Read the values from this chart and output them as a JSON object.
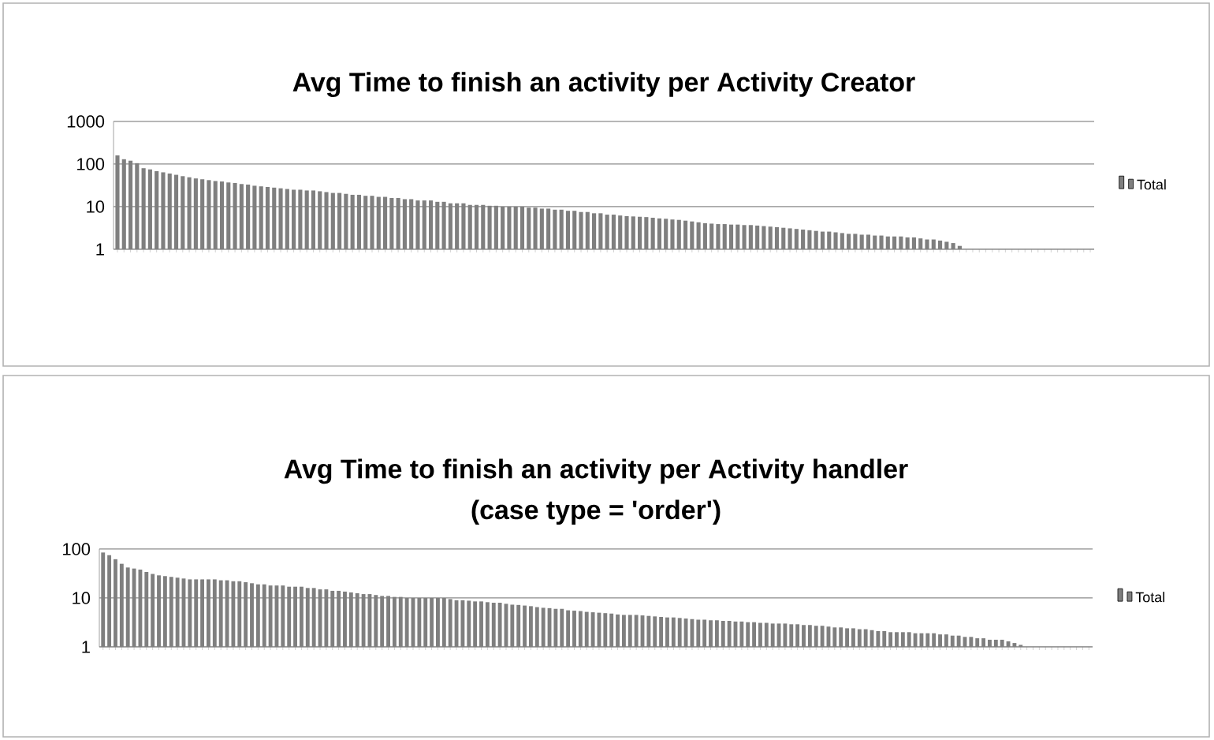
{
  "chart_data": [
    {
      "type": "bar",
      "title": "Avg Time to finish an activity per Activity Creator",
      "log": true,
      "grid": "y",
      "legend": "right",
      "ylim": [
        1,
        1000
      ],
      "yticks": [
        1,
        10,
        100,
        1000
      ],
      "categories": [
        null,
        null,
        null,
        null,
        null,
        null,
        null,
        null,
        null,
        null,
        null,
        null,
        null,
        null,
        null,
        null,
        null,
        null,
        null,
        null,
        null,
        null,
        null,
        null,
        null,
        null,
        null,
        null,
        null,
        null,
        null,
        null,
        null,
        null,
        null,
        null,
        null,
        null,
        null,
        null,
        null,
        null,
        null,
        null,
        null,
        null,
        null,
        null,
        null,
        null,
        null,
        null,
        null,
        null,
        null,
        null,
        null,
        null,
        null,
        null,
        null,
        null,
        null,
        null,
        null,
        null,
        null,
        null,
        null,
        null,
        null,
        null,
        null,
        null,
        null,
        null,
        null,
        null,
        null,
        null,
        null,
        null,
        null,
        null,
        null,
        null,
        null,
        null,
        null,
        null,
        null,
        null,
        null,
        null,
        null,
        null,
        null,
        null,
        null,
        null,
        null,
        null,
        null,
        null,
        null,
        null,
        null,
        null,
        null,
        null,
        null,
        null,
        null,
        null,
        null,
        null,
        null,
        null,
        null,
        null,
        null,
        null,
        null,
        null,
        null,
        null,
        null,
        null,
        null,
        null,
        null,
        null,
        null,
        null,
        null,
        null,
        null,
        null,
        null,
        null,
        null,
        null,
        null,
        null,
        null,
        null,
        null,
        null,
        null,
        null
      ],
      "series": [
        {
          "name": "Total",
          "color": "#7f7f7f",
          "values": [
            160,
            130,
            120,
            105,
            80,
            75,
            68,
            64,
            60,
            56,
            52,
            49,
            46,
            44,
            42,
            40,
            39,
            37,
            36,
            34,
            33,
            31,
            30,
            29,
            28,
            27,
            26,
            25,
            25,
            24,
            24,
            23,
            22,
            21,
            21,
            20,
            19,
            19,
            18,
            18,
            17,
            17,
            16,
            16,
            15,
            15,
            14,
            14,
            14,
            13,
            13,
            12,
            12,
            12,
            11,
            11,
            11,
            10.5,
            10.5,
            10,
            10,
            10,
            10,
            9.5,
            9.5,
            9,
            9,
            8.5,
            8.5,
            8,
            8,
            7.5,
            7.5,
            7,
            7,
            6.5,
            6.5,
            6.2,
            6,
            5.9,
            5.8,
            5.7,
            5.5,
            5.3,
            5.2,
            5,
            4.9,
            4.7,
            4.5,
            4.3,
            4.1,
            4,
            3.9,
            3.9,
            3.8,
            3.8,
            3.7,
            3.7,
            3.6,
            3.5,
            3.4,
            3.3,
            3.2,
            3.1,
            3,
            2.9,
            2.8,
            2.7,
            2.6,
            2.6,
            2.5,
            2.4,
            2.3,
            2.3,
            2.2,
            2.2,
            2.1,
            2.1,
            2,
            2,
            2,
            1.9,
            1.9,
            1.8,
            1.7,
            1.7,
            1.6,
            1.5,
            1.4,
            1.2,
            1,
            1,
            1,
            1,
            1,
            1,
            1,
            1,
            1,
            1,
            1,
            1,
            1,
            1,
            1,
            1,
            1,
            1,
            1,
            1
          ]
        }
      ]
    },
    {
      "type": "bar",
      "title": "Avg Time to finish an activity per Activity handler",
      "subtitle": "(case type = 'order')",
      "log": true,
      "grid": "y",
      "legend": "right",
      "ylim": [
        1,
        100
      ],
      "yticks": [
        1,
        10,
        100
      ],
      "categories": [
        null,
        null,
        null,
        null,
        null,
        null,
        null,
        null,
        null,
        null,
        null,
        null,
        null,
        null,
        null,
        null,
        null,
        null,
        null,
        null,
        null,
        null,
        null,
        null,
        null,
        null,
        null,
        null,
        null,
        null,
        null,
        null,
        null,
        null,
        null,
        null,
        null,
        null,
        null,
        null,
        null,
        null,
        null,
        null,
        null,
        null,
        null,
        null,
        null,
        null,
        null,
        null,
        null,
        null,
        null,
        null,
        null,
        null,
        null,
        null,
        null,
        null,
        null,
        null,
        null,
        null,
        null,
        null,
        null,
        null,
        null,
        null,
        null,
        null,
        null,
        null,
        null,
        null,
        null,
        null,
        null,
        null,
        null,
        null,
        null,
        null,
        null,
        null,
        null,
        null,
        null,
        null,
        null,
        null,
        null,
        null,
        null,
        null,
        null,
        null,
        null,
        null,
        null,
        null,
        null,
        null,
        null,
        null,
        null,
        null,
        null,
        null,
        null,
        null,
        null,
        null,
        null,
        null,
        null,
        null,
        null,
        null,
        null,
        null,
        null,
        null,
        null,
        null,
        null,
        null,
        null,
        null,
        null,
        null,
        null,
        null,
        null,
        null,
        null,
        null,
        null,
        null,
        null,
        null,
        null,
        null,
        null,
        null,
        null,
        null,
        null,
        null,
        null,
        null,
        null,
        null,
        null,
        null,
        null,
        null
      ],
      "series": [
        {
          "name": "Total",
          "color": "#7f7f7f",
          "values": [
            85,
            75,
            62,
            50,
            42,
            40,
            38,
            34,
            31,
            29,
            28,
            27,
            26,
            25,
            24,
            24,
            24,
            24,
            24,
            23,
            23,
            22,
            22,
            21,
            20,
            19,
            19,
            18,
            18,
            18,
            17,
            17,
            17,
            16,
            16,
            15,
            15,
            14,
            14,
            13.5,
            13,
            12.5,
            12,
            12,
            11.5,
            11,
            11,
            10.5,
            10.5,
            10,
            10,
            10,
            10,
            10,
            10,
            10,
            9.5,
            9,
            9,
            8.8,
            8.5,
            8.5,
            8.2,
            8,
            8,
            7.6,
            7.3,
            7.2,
            7,
            6.8,
            6.5,
            6.3,
            6.2,
            6,
            6,
            5.6,
            5.5,
            5.4,
            5.2,
            5.1,
            5,
            4.9,
            4.8,
            4.6,
            4.5,
            4.5,
            4.5,
            4.4,
            4.3,
            4.2,
            4.1,
            4,
            4,
            3.9,
            3.8,
            3.7,
            3.6,
            3.6,
            3.5,
            3.5,
            3.4,
            3.4,
            3.3,
            3.3,
            3.2,
            3.2,
            3.1,
            3.1,
            3,
            3,
            3,
            2.9,
            2.9,
            2.8,
            2.8,
            2.7,
            2.7,
            2.6,
            2.5,
            2.5,
            2.4,
            2.4,
            2.3,
            2.3,
            2.2,
            2.1,
            2.1,
            2,
            2,
            2,
            2,
            1.9,
            1.9,
            1.9,
            1.9,
            1.8,
            1.8,
            1.7,
            1.7,
            1.6,
            1.6,
            1.5,
            1.5,
            1.4,
            1.4,
            1.4,
            1.3,
            1.2,
            1.1,
            1,
            1,
            1,
            1,
            1,
            1,
            1,
            1,
            1,
            1,
            1
          ]
        }
      ]
    }
  ]
}
